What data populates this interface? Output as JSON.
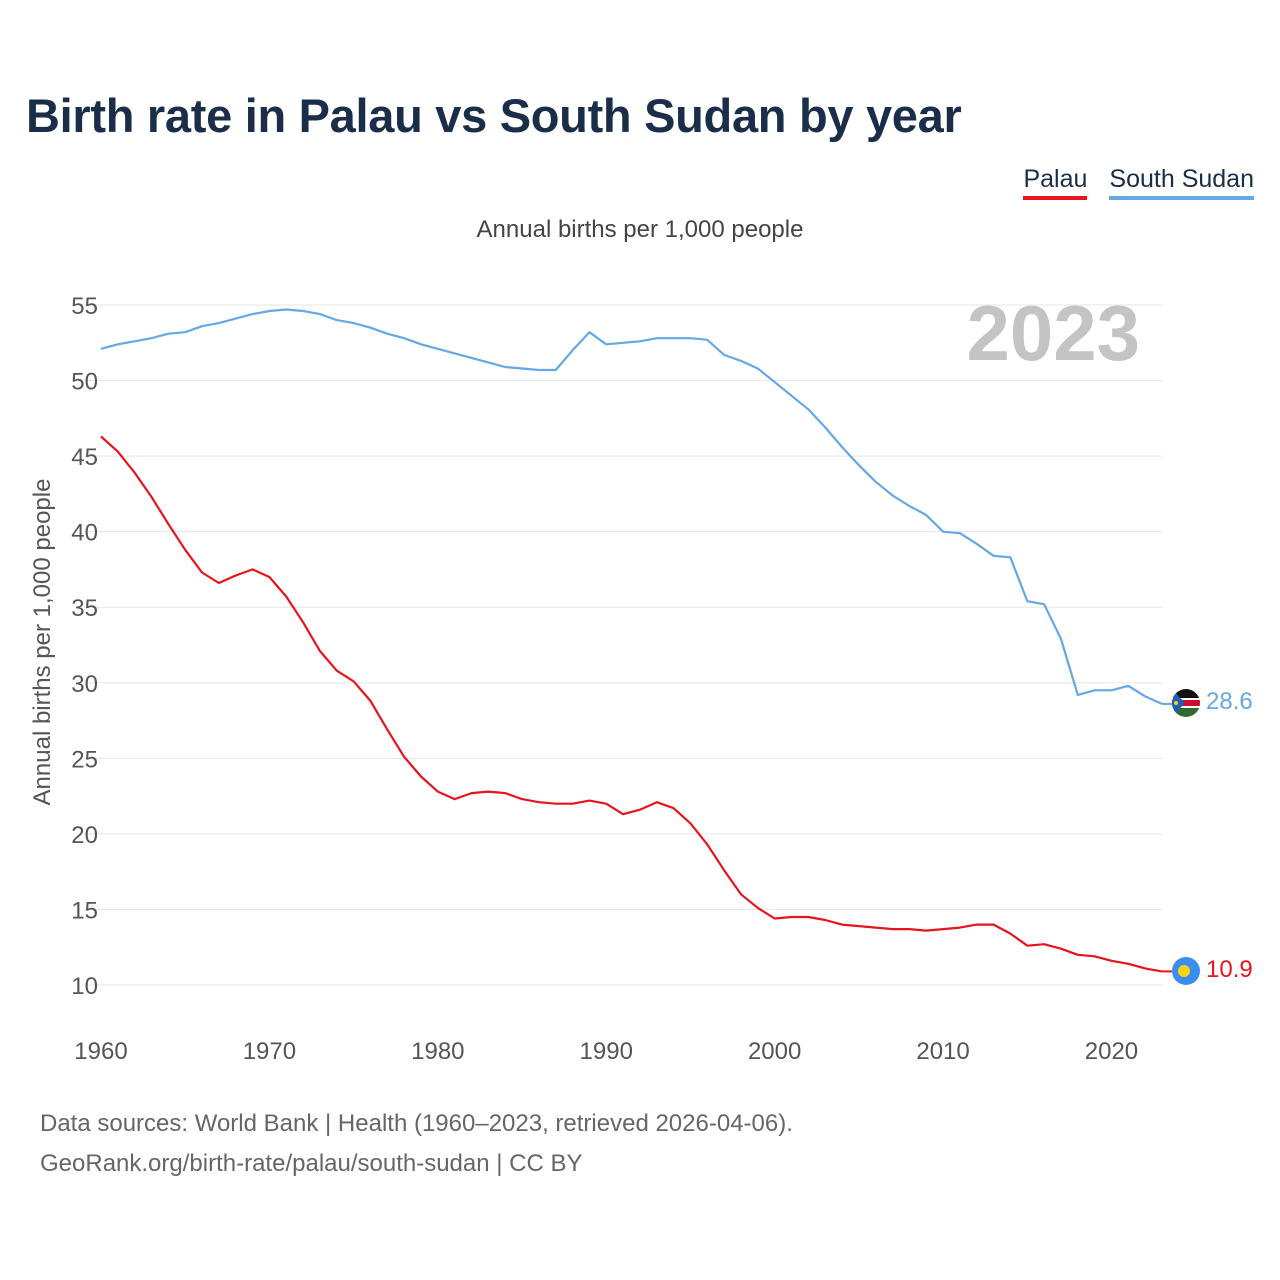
{
  "title": "Birth rate in Palau vs South Sudan by year",
  "legend": [
    {
      "label": "Palau",
      "color": "#e8141c"
    },
    {
      "label": "South Sudan",
      "color": "#64a8e6"
    }
  ],
  "subtitle": "Annual births per 1,000 people",
  "year_badge": "2023",
  "end_labels": {
    "palau": "10.9",
    "south_sudan": "28.6"
  },
  "footer": {
    "line1": "Data sources: World Bank | Health (1960–2023, retrieved 2026-04-06).",
    "line2": "GeoRank.org/birth-rate/palau/south-sudan | CC BY"
  },
  "chart_data": {
    "type": "line",
    "title": "Birth rate in Palau vs South Sudan by year",
    "xlabel": "",
    "ylabel": "Annual births per 1,000 people",
    "xlim": [
      1960,
      2023
    ],
    "ylim": [
      7.5,
      55
    ],
    "x_ticks": [
      1960,
      1970,
      1980,
      1990,
      2000,
      2010,
      2020
    ],
    "y_ticks": [
      10,
      15,
      20,
      25,
      30,
      35,
      40,
      45,
      50,
      55
    ],
    "grid": true,
    "legend_position": "top-right",
    "x": [
      1960,
      1961,
      1962,
      1963,
      1964,
      1965,
      1966,
      1967,
      1968,
      1969,
      1970,
      1971,
      1972,
      1973,
      1974,
      1975,
      1976,
      1977,
      1978,
      1979,
      1980,
      1981,
      1982,
      1983,
      1984,
      1985,
      1986,
      1987,
      1988,
      1989,
      1990,
      1991,
      1992,
      1993,
      1994,
      1995,
      1996,
      1997,
      1998,
      1999,
      2000,
      2001,
      2002,
      2003,
      2004,
      2005,
      2006,
      2007,
      2008,
      2009,
      2010,
      2011,
      2012,
      2013,
      2014,
      2015,
      2016,
      2017,
      2018,
      2019,
      2020,
      2021,
      2022,
      2023
    ],
    "series": [
      {
        "name": "Palau",
        "color": "#e8141c",
        "values": [
          46.3,
          45.3,
          43.9,
          42.3,
          40.5,
          38.8,
          37.3,
          36.6,
          37.1,
          37.5,
          37.0,
          35.7,
          34.0,
          32.1,
          30.8,
          30.1,
          28.8,
          26.9,
          25.1,
          23.8,
          22.8,
          22.3,
          22.7,
          22.8,
          22.7,
          22.3,
          22.1,
          22.0,
          22.0,
          22.2,
          22.0,
          21.3,
          21.6,
          22.1,
          21.7,
          20.7,
          19.3,
          17.6,
          16.0,
          15.1,
          14.4,
          14.5,
          14.5,
          14.3,
          14.0,
          13.9,
          13.8,
          13.7,
          13.7,
          13.6,
          13.7,
          13.8,
          14.0,
          14.0,
          13.4,
          12.6,
          12.7,
          12.4,
          12.0,
          11.9,
          11.6,
          11.4,
          11.1,
          10.9
        ]
      },
      {
        "name": "South Sudan",
        "color": "#64a8e6",
        "values": [
          52.1,
          52.4,
          52.6,
          52.8,
          53.1,
          53.2,
          53.6,
          53.8,
          54.1,
          54.4,
          54.6,
          54.7,
          54.6,
          54.4,
          54.0,
          53.8,
          53.5,
          53.1,
          52.8,
          52.4,
          52.1,
          51.8,
          51.5,
          51.2,
          50.9,
          50.8,
          50.7,
          50.7,
          52.0,
          53.2,
          52.4,
          52.5,
          52.6,
          52.8,
          52.8,
          52.8,
          52.7,
          51.7,
          51.3,
          50.8,
          49.9,
          49.0,
          48.1,
          46.9,
          45.6,
          44.4,
          43.3,
          42.4,
          41.7,
          41.1,
          40.0,
          39.9,
          39.2,
          38.4,
          38.3,
          35.4,
          35.2,
          32.9,
          29.2,
          29.5,
          29.5,
          29.8,
          29.1,
          28.6
        ]
      }
    ],
    "end_values": {
      "Palau": 10.9,
      "South Sudan": 28.6
    }
  }
}
